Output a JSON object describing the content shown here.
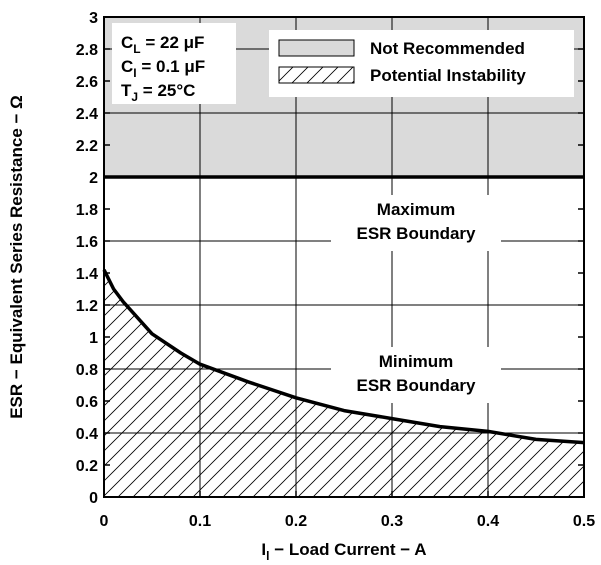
{
  "chart_data": {
    "type": "area",
    "xlim": [
      0,
      0.5
    ],
    "ylim": [
      0,
      3
    ],
    "x_ticks": [
      "0",
      "0.1",
      "0.2",
      "0.3",
      "0.4",
      "0.5"
    ],
    "y_ticks": [
      "0",
      "0.2",
      "0.4",
      "0.6",
      "0.8",
      "1",
      "1.2",
      "1.4",
      "1.6",
      "1.8",
      "2",
      "2.2",
      "2.4",
      "2.6",
      "2.8",
      "3"
    ],
    "grid": true,
    "xlabel_main": "I",
    "xlabel_sub": "l",
    "xlabel_rest": " − Load Current − A",
    "ylabel": "ESR − Equivalent Series Resistance − Ω",
    "conditions": [
      {
        "main": "C",
        "sub": "L",
        "rest": " = 22 μF"
      },
      {
        "main": "C",
        "sub": "I",
        "rest": " = 0.1 μF"
      },
      {
        "main": "T",
        "sub": "J",
        "rest": " = 25°C"
      }
    ],
    "legend": {
      "placement": "top-right",
      "items": [
        {
          "label": "Not Recommended",
          "style": "gray-fill"
        },
        {
          "label": "Potential Instability",
          "style": "hatch"
        }
      ]
    },
    "series": [
      {
        "role": "maximum-boundary",
        "x": [
          0,
          0.5
        ],
        "y": [
          2,
          2
        ]
      },
      {
        "role": "minimum-boundary",
        "x": [
          0,
          0.01,
          0.02,
          0.05,
          0.08,
          0.1,
          0.15,
          0.2,
          0.25,
          0.3,
          0.35,
          0.4,
          0.45,
          0.5
        ],
        "y": [
          1.42,
          1.3,
          1.22,
          1.02,
          0.9,
          0.83,
          0.72,
          0.62,
          0.54,
          0.49,
          0.44,
          0.41,
          0.36,
          0.34
        ]
      }
    ],
    "regions": [
      {
        "label": "Not Recommended",
        "y_from": 2,
        "y_to": 3
      },
      {
        "label": "Potential Instability",
        "below": "minimum-boundary"
      }
    ],
    "annotations": [
      {
        "lines": [
          "Maximum",
          "ESR Boundary"
        ],
        "x": 0.325,
        "y": 1.8
      },
      {
        "lines": [
          "Minimum",
          "ESR Boundary"
        ],
        "x": 0.325,
        "y": 0.85
      }
    ],
    "colors": {
      "not_recommended_fill": "#dadada",
      "line": "#000000",
      "grid": "#000000"
    }
  }
}
